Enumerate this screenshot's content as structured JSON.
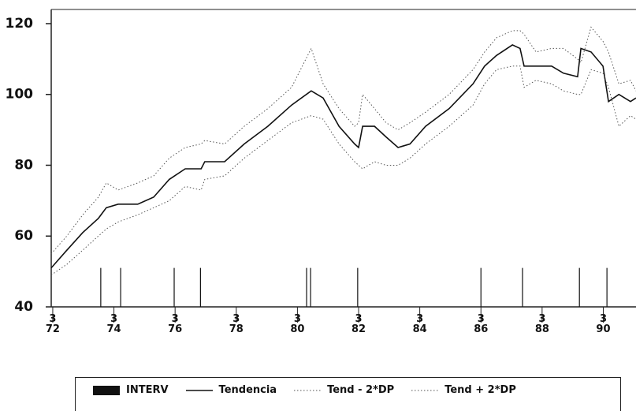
{
  "chart_data": {
    "type": "line",
    "ylim": [
      40,
      124
    ],
    "yticks": [
      40,
      60,
      80,
      100,
      120
    ],
    "xlim": [
      1972.12,
      1991.24
    ],
    "xticks": [
      {
        "value": 1972.17,
        "label": "3\n72"
      },
      {
        "value": 1974.17,
        "label": "3\n74"
      },
      {
        "value": 1976.17,
        "label": "3\n76"
      },
      {
        "value": 1978.17,
        "label": "3\n78"
      },
      {
        "value": 1980.17,
        "label": "3\n80"
      },
      {
        "value": 1982.17,
        "label": "3\n82"
      },
      {
        "value": 1984.17,
        "label": "3\n84"
      },
      {
        "value": 1986.17,
        "label": "3\n86"
      },
      {
        "value": 1988.17,
        "label": "3\n88"
      },
      {
        "value": 1990.17,
        "label": "3\n90"
      }
    ],
    "series": [
      {
        "name": "INTERV",
        "kind": "spike",
        "color": "#111",
        "x": [
          1973.74,
          1974.39,
          1976.14,
          1977.0,
          1980.47,
          1980.6,
          1982.14,
          1986.17,
          1987.53,
          1989.39,
          1990.29
        ],
        "values": [
          51,
          51,
          51,
          51,
          51,
          51,
          51,
          51,
          51,
          51,
          51
        ]
      },
      {
        "name": "Tendencia",
        "kind": "solid",
        "color": "#111",
        "x": [
          1972.12,
          1972.63,
          1973.15,
          1973.66,
          1973.92,
          1974.31,
          1974.95,
          1975.47,
          1975.98,
          1976.5,
          1977.02,
          1977.14,
          1977.79,
          1978.43,
          1979.2,
          1979.98,
          1980.62,
          1981.01,
          1981.53,
          1982.04,
          1982.17,
          1982.3,
          1982.69,
          1983.07,
          1983.46,
          1983.85,
          1984.36,
          1985.13,
          1985.91,
          1986.29,
          1986.68,
          1987.2,
          1987.45,
          1987.58,
          1987.97,
          1988.48,
          1988.87,
          1989.33,
          1989.44,
          1989.77,
          1990.16,
          1990.34,
          1990.68,
          1991.06,
          1991.24
        ],
        "values": [
          51,
          56,
          61,
          65,
          68,
          69,
          69,
          71,
          76,
          79,
          79,
          81,
          81,
          86,
          91,
          97,
          101,
          99,
          91,
          86,
          85,
          91,
          91,
          88,
          85,
          86,
          91,
          96,
          103,
          108,
          111,
          114,
          113,
          108,
          108,
          108,
          106,
          105,
          113,
          112,
          108,
          98,
          100,
          98,
          99
        ]
      },
      {
        "name": "Tend - 2*DP",
        "kind": "dotted",
        "color": "#555",
        "x": [
          1972.12,
          1972.63,
          1973.15,
          1973.66,
          1973.92,
          1974.31,
          1974.95,
          1975.47,
          1975.98,
          1976.5,
          1977.02,
          1977.14,
          1977.79,
          1978.43,
          1979.2,
          1979.98,
          1980.62,
          1981.01,
          1981.53,
          1982.04,
          1982.17,
          1982.3,
          1982.69,
          1983.07,
          1983.46,
          1983.85,
          1984.36,
          1985.13,
          1985.91,
          1986.29,
          1986.68,
          1987.2,
          1987.45,
          1987.58,
          1987.97,
          1988.48,
          1988.87,
          1989.33,
          1989.44,
          1989.77,
          1990.16,
          1990.34,
          1990.68,
          1991.06,
          1991.24
        ],
        "values": [
          49,
          52,
          56,
          60,
          62,
          64,
          66,
          68,
          70,
          74,
          73,
          76,
          77,
          82,
          87,
          92,
          94,
          93,
          86,
          81,
          80,
          79,
          81,
          80,
          80,
          82,
          86,
          91,
          97,
          103,
          107,
          108,
          108,
          102,
          104,
          103,
          101,
          100,
          100,
          107,
          106,
          102,
          91,
          94,
          93
        ]
      },
      {
        "name": "Tend + 2*DP",
        "kind": "dotted",
        "color": "#555",
        "x": [
          1972.12,
          1972.63,
          1973.15,
          1973.66,
          1973.92,
          1974.31,
          1974.95,
          1975.47,
          1975.98,
          1976.5,
          1977.02,
          1977.14,
          1977.79,
          1978.43,
          1979.2,
          1979.98,
          1980.62,
          1981.01,
          1981.53,
          1982.04,
          1982.17,
          1982.3,
          1982.69,
          1983.07,
          1983.46,
          1983.85,
          1984.36,
          1985.13,
          1985.91,
          1986.29,
          1986.68,
          1987.2,
          1987.45,
          1987.58,
          1987.97,
          1988.48,
          1988.87,
          1989.33,
          1989.44,
          1989.77,
          1990.16,
          1990.34,
          1990.68,
          1991.06,
          1991.24
        ],
        "values": [
          55,
          60,
          66,
          71,
          75,
          73,
          75,
          77,
          82,
          85,
          86,
          87,
          86,
          91,
          96,
          102,
          113,
          103,
          96,
          91,
          92,
          100,
          96,
          92,
          90,
          92,
          95,
          100,
          107,
          112,
          116,
          118,
          118,
          117,
          112,
          113,
          113,
          110,
          109,
          119,
          115,
          112,
          103,
          104,
          101
        ]
      }
    ]
  }
}
